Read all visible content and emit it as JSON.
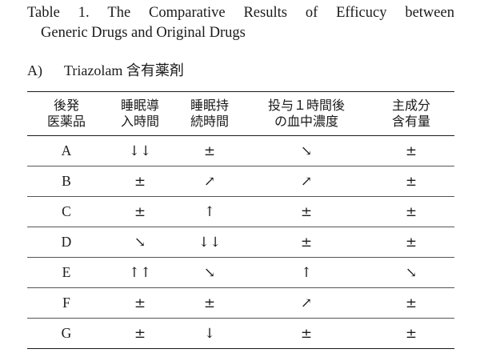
{
  "caption": {
    "words": [
      "Table",
      "1.",
      "The",
      "Comparative",
      "Results",
      "of",
      "Efficucy",
      "between"
    ],
    "line2": "Generic Drugs and Original Drugs"
  },
  "section": {
    "letter": "A)",
    "title": "Triazolam 含有薬剤"
  },
  "table": {
    "headers": [
      [
        "後発",
        "医薬品"
      ],
      [
        "睡眠導",
        "入時間"
      ],
      [
        "睡眠持",
        "続時間"
      ],
      [
        "投与１時間後",
        "の血中濃度"
      ],
      [
        "主成分",
        "含有量"
      ]
    ],
    "rows": [
      [
        "A",
        "↓↓",
        "±",
        "↘",
        "±"
      ],
      [
        "B",
        "±",
        "↗",
        "↗",
        "±"
      ],
      [
        "C",
        "±",
        "↑",
        "±",
        "±"
      ],
      [
        "D",
        "↘",
        "↓↓",
        "±",
        "±"
      ],
      [
        "E",
        "↑↑",
        "↘",
        "↑",
        "↘"
      ],
      [
        "F",
        "±",
        "±",
        "↗",
        "±"
      ],
      [
        "G",
        "±",
        "↓",
        "±",
        "±"
      ]
    ]
  }
}
